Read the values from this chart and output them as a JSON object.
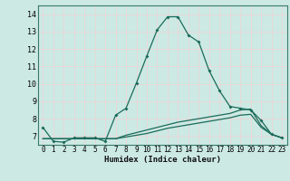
{
  "xlabel": "Humidex (Indice chaleur)",
  "background_color": "#cce9e4",
  "grid_color": "#e8d8d8",
  "line_color": "#1a6b5a",
  "xlim": [
    -0.5,
    23.5
  ],
  "ylim": [
    6.5,
    14.5
  ],
  "xticks": [
    0,
    1,
    2,
    3,
    4,
    5,
    6,
    7,
    8,
    9,
    10,
    11,
    12,
    13,
    14,
    15,
    16,
    17,
    18,
    19,
    20,
    21,
    22,
    23
  ],
  "yticks": [
    7,
    8,
    9,
    10,
    11,
    12,
    13,
    14
  ],
  "curve1_x": [
    0,
    1,
    2,
    3,
    4,
    5,
    6,
    7,
    8,
    9,
    10,
    11,
    12,
    13,
    14,
    15,
    16,
    17,
    18,
    19,
    20,
    21,
    22,
    23
  ],
  "curve1_y": [
    7.5,
    6.7,
    6.65,
    6.9,
    6.9,
    6.9,
    6.7,
    8.2,
    8.6,
    10.05,
    11.6,
    13.1,
    13.85,
    13.85,
    12.8,
    12.4,
    10.75,
    9.6,
    8.7,
    8.6,
    8.5,
    7.9,
    7.1,
    6.9
  ],
  "curve2_x": [
    0,
    1,
    2,
    3,
    4,
    5,
    6,
    7,
    8,
    9,
    10,
    11,
    12,
    13,
    14,
    15,
    16,
    17,
    18,
    19,
    20,
    21,
    22,
    23
  ],
  "curve2_y": [
    6.85,
    6.85,
    6.85,
    6.85,
    6.85,
    6.85,
    6.85,
    6.85,
    7.05,
    7.2,
    7.35,
    7.5,
    7.65,
    7.8,
    7.9,
    8.0,
    8.1,
    8.2,
    8.3,
    8.5,
    8.55,
    7.6,
    7.1,
    6.9
  ],
  "curve3_x": [
    0,
    1,
    2,
    3,
    4,
    5,
    6,
    7,
    8,
    9,
    10,
    11,
    12,
    13,
    14,
    15,
    16,
    17,
    18,
    19,
    20,
    21,
    22,
    23
  ],
  "curve3_y": [
    6.85,
    6.85,
    6.85,
    6.85,
    6.85,
    6.85,
    6.85,
    6.85,
    6.95,
    7.05,
    7.15,
    7.3,
    7.45,
    7.55,
    7.65,
    7.75,
    7.85,
    7.95,
    8.05,
    8.2,
    8.25,
    7.5,
    7.1,
    6.9
  ],
  "xlabel_fontsize": 6.5,
  "tick_fontsize": 5.5,
  "ytick_fontsize": 6.0
}
